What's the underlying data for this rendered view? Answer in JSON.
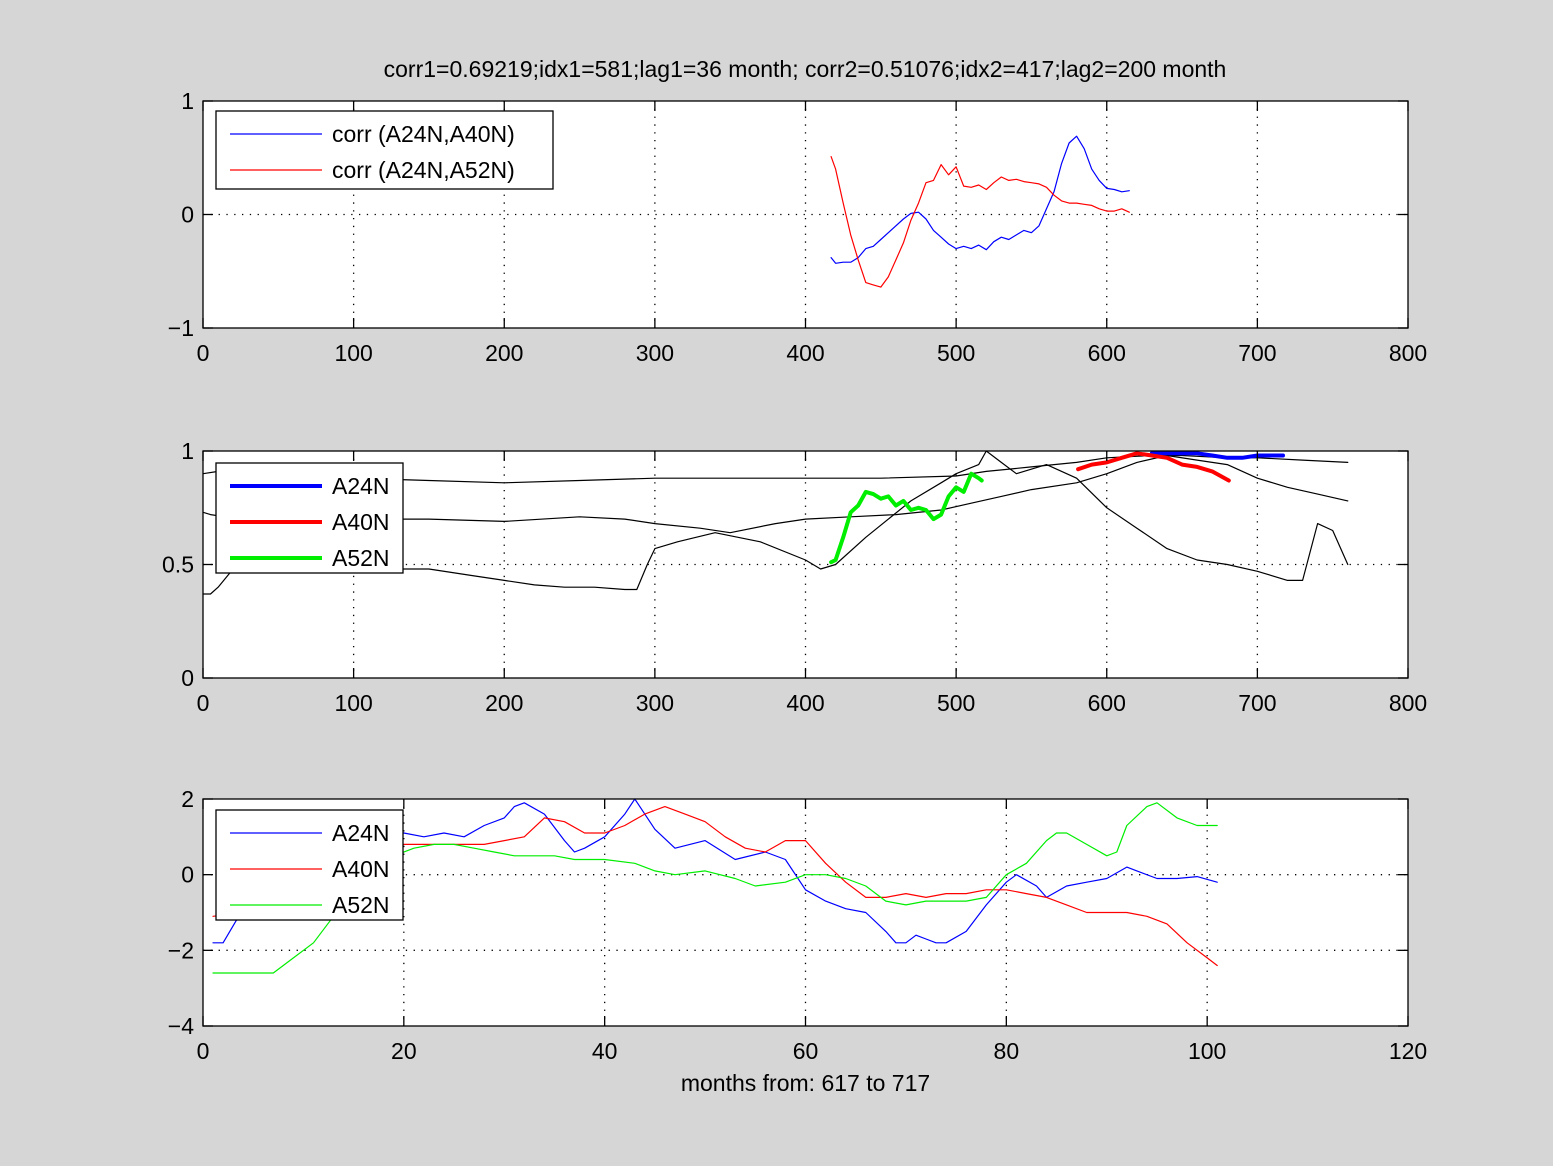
{
  "figure": {
    "title": "corr1=0.69219;idx1=581;lag1=36 month;   corr2=0.51076;idx2=417;lag2=200 month",
    "background": "#d6d6d6"
  },
  "chart_data": [
    {
      "type": "line",
      "title": "corr1=0.69219;idx1=581;lag1=36 month;   corr2=0.51076;idx2=417;lag2=200 month",
      "xlabel": "",
      "ylabel": "",
      "xlim": [
        0,
        800
      ],
      "ylim": [
        -1,
        1
      ],
      "xticks": [
        0,
        100,
        200,
        300,
        400,
        500,
        600,
        700,
        800
      ],
      "yticks": [
        -1,
        0,
        1
      ],
      "grid": true,
      "legend_position": "top-left",
      "series": [
        {
          "name": "corr (A24N,A40N)",
          "color": "#0000ff",
          "width": 1.2,
          "x": [
            417,
            420,
            425,
            430,
            435,
            440,
            445,
            450,
            455,
            460,
            465,
            470,
            475,
            480,
            485,
            490,
            495,
            500,
            505,
            510,
            515,
            520,
            525,
            530,
            535,
            540,
            545,
            550,
            555,
            560,
            565,
            570,
            575,
            580,
            585,
            590,
            595,
            600,
            605,
            610,
            615
          ],
          "y": [
            -0.38,
            -0.43,
            -0.42,
            -0.42,
            -0.38,
            -0.3,
            -0.28,
            -0.22,
            -0.16,
            -0.1,
            -0.04,
            0.01,
            0.02,
            -0.04,
            -0.14,
            -0.2,
            -0.26,
            -0.3,
            -0.28,
            -0.3,
            -0.27,
            -0.31,
            -0.24,
            -0.2,
            -0.22,
            -0.18,
            -0.14,
            -0.16,
            -0.1,
            0.05,
            0.2,
            0.45,
            0.63,
            0.69,
            0.58,
            0.4,
            0.3,
            0.23,
            0.22,
            0.2,
            0.21
          ]
        },
        {
          "name": "corr (A24N,A52N)",
          "color": "#ff0000",
          "width": 1.2,
          "x": [
            417,
            420,
            425,
            430,
            435,
            440,
            445,
            450,
            455,
            460,
            465,
            470,
            475,
            480,
            485,
            490,
            495,
            500,
            505,
            510,
            515,
            520,
            525,
            530,
            535,
            540,
            545,
            550,
            555,
            560,
            565,
            570,
            575,
            580,
            585,
            590,
            595,
            600,
            605,
            610,
            615
          ],
          "y": [
            0.51,
            0.4,
            0.1,
            -0.18,
            -0.4,
            -0.6,
            -0.62,
            -0.64,
            -0.55,
            -0.4,
            -0.25,
            -0.05,
            0.1,
            0.28,
            0.3,
            0.44,
            0.35,
            0.42,
            0.25,
            0.24,
            0.26,
            0.22,
            0.28,
            0.33,
            0.3,
            0.31,
            0.29,
            0.28,
            0.27,
            0.24,
            0.17,
            0.12,
            0.1,
            0.1,
            0.09,
            0.08,
            0.05,
            0.03,
            0.03,
            0.05,
            0.02
          ]
        }
      ]
    },
    {
      "type": "line",
      "xlabel": "",
      "ylabel": "",
      "xlim": [
        0,
        800
      ],
      "ylim": [
        0,
        1
      ],
      "xticks": [
        0,
        100,
        200,
        300,
        400,
        500,
        600,
        700,
        800
      ],
      "yticks": [
        0,
        0.5,
        1
      ],
      "grid": true,
      "legend_position": "top-left",
      "background_series": [
        {
          "color": "#000000",
          "width": 1.2,
          "x": [
            0,
            10,
            50,
            100,
            150,
            200,
            250,
            300,
            350,
            400,
            450,
            500,
            520,
            550,
            580,
            600,
            630,
            650,
            680,
            700,
            730,
            760
          ],
          "y": [
            0.9,
            0.91,
            0.89,
            0.88,
            0.87,
            0.86,
            0.87,
            0.88,
            0.88,
            0.88,
            0.88,
            0.89,
            0.91,
            0.93,
            0.95,
            0.97,
            0.98,
            0.98,
            0.97,
            0.97,
            0.96,
            0.95
          ]
        },
        {
          "color": "#000000",
          "width": 1.2,
          "x": [
            0,
            5,
            15,
            40,
            60,
            90,
            120,
            150,
            200,
            250,
            280,
            300,
            330,
            350,
            380,
            400,
            430,
            460,
            490,
            510,
            530,
            550,
            580,
            600,
            620,
            640,
            660,
            680,
            700,
            720,
            740,
            760
          ],
          "y": [
            0.73,
            0.72,
            0.71,
            0.71,
            0.71,
            0.7,
            0.7,
            0.7,
            0.69,
            0.71,
            0.7,
            0.68,
            0.66,
            0.64,
            0.68,
            0.7,
            0.71,
            0.72,
            0.74,
            0.77,
            0.8,
            0.83,
            0.86,
            0.9,
            0.95,
            0.98,
            0.96,
            0.94,
            0.88,
            0.84,
            0.81,
            0.78
          ]
        },
        {
          "color": "#000000",
          "width": 1.2,
          "x": [
            0,
            5,
            10,
            20,
            40,
            60,
            90,
            100,
            120,
            150,
            180,
            200,
            220,
            240,
            260,
            280,
            288,
            295,
            300,
            315,
            340,
            370,
            400,
            410,
            420,
            440,
            470,
            490,
            500,
            515,
            520,
            530,
            540,
            560,
            580,
            600,
            620,
            640,
            660,
            680,
            700,
            720,
            730,
            740,
            750,
            760
          ],
          "y": [
            0.37,
            0.37,
            0.4,
            0.48,
            0.5,
            0.51,
            0.5,
            0.49,
            0.48,
            0.48,
            0.45,
            0.43,
            0.41,
            0.4,
            0.4,
            0.39,
            0.39,
            0.5,
            0.57,
            0.6,
            0.64,
            0.6,
            0.52,
            0.48,
            0.5,
            0.62,
            0.78,
            0.86,
            0.9,
            0.94,
            1.0,
            0.95,
            0.9,
            0.94,
            0.88,
            0.75,
            0.66,
            0.57,
            0.52,
            0.5,
            0.47,
            0.43,
            0.43,
            0.68,
            0.65,
            0.5
          ]
        }
      ],
      "series": [
        {
          "name": "A24N",
          "color": "#0000ff",
          "width": 4,
          "x": [
            630,
            640,
            650,
            660,
            670,
            680,
            690,
            700,
            710,
            717
          ],
          "y": [
            0.99,
            0.99,
            0.99,
            0.99,
            0.98,
            0.97,
            0.97,
            0.98,
            0.98,
            0.98
          ]
        },
        {
          "name": "A40N",
          "color": "#ff0000",
          "width": 4,
          "x": [
            581,
            590,
            600,
            610,
            620,
            630,
            640,
            650,
            660,
            670,
            681
          ],
          "y": [
            0.92,
            0.94,
            0.95,
            0.97,
            0.99,
            0.98,
            0.97,
            0.94,
            0.93,
            0.91,
            0.87
          ]
        },
        {
          "name": "A52N",
          "color": "#00ee00",
          "width": 4,
          "x": [
            417,
            420,
            425,
            430,
            435,
            440,
            445,
            450,
            455,
            460,
            465,
            470,
            475,
            480,
            485,
            490,
            495,
            500,
            505,
            510,
            515,
            517
          ],
          "y": [
            0.51,
            0.52,
            0.62,
            0.73,
            0.76,
            0.82,
            0.81,
            0.79,
            0.8,
            0.76,
            0.78,
            0.74,
            0.75,
            0.74,
            0.7,
            0.72,
            0.8,
            0.84,
            0.82,
            0.9,
            0.88,
            0.87
          ]
        }
      ]
    },
    {
      "type": "line",
      "xlabel": "months from: 617 to 717",
      "ylabel": "",
      "xlim": [
        0,
        120
      ],
      "ylim": [
        -4,
        2
      ],
      "xticks": [
        0,
        20,
        40,
        60,
        80,
        100,
        120
      ],
      "yticks": [
        -4,
        -2,
        0,
        2
      ],
      "grid": true,
      "legend_position": "top-left",
      "series": [
        {
          "name": "A24N",
          "color": "#0000ff",
          "width": 1.2,
          "x": [
            1,
            2,
            4,
            6,
            8,
            10,
            12,
            14,
            16,
            18,
            20,
            22,
            24,
            26,
            28,
            30,
            31,
            32,
            34,
            36,
            37,
            38,
            40,
            42,
            43,
            45,
            47,
            50,
            53,
            56,
            58,
            60,
            62,
            64,
            66,
            68,
            69,
            70,
            71,
            72,
            73,
            74,
            76,
            78,
            80,
            81,
            83,
            84,
            86,
            88,
            90,
            92,
            93,
            95,
            97,
            99,
            101
          ],
          "y": [
            -1.8,
            -1.8,
            -0.9,
            -0.3,
            0.1,
            0.4,
            0.6,
            0.8,
            0.9,
            1.0,
            1.1,
            1.0,
            1.1,
            1.0,
            1.3,
            1.5,
            1.8,
            1.9,
            1.6,
            0.9,
            0.6,
            0.7,
            1.0,
            1.6,
            2.0,
            1.2,
            0.7,
            0.9,
            0.4,
            0.6,
            0.4,
            -0.4,
            -0.7,
            -0.9,
            -1.0,
            -1.5,
            -1.8,
            -1.8,
            -1.6,
            -1.7,
            -1.8,
            -1.8,
            -1.5,
            -0.8,
            -0.2,
            0.0,
            -0.3,
            -0.6,
            -0.3,
            -0.2,
            -0.1,
            0.2,
            0.1,
            -0.1,
            -0.1,
            -0.05,
            -0.2
          ]
        },
        {
          "name": "A40N",
          "color": "#ff0000",
          "width": 1.2,
          "x": [
            1,
            4,
            8,
            12,
            16,
            20,
            22,
            25,
            28,
            30,
            32,
            34,
            36,
            38,
            40,
            42,
            44,
            46,
            48,
            50,
            52,
            54,
            56,
            58,
            60,
            62,
            64,
            66,
            68,
            70,
            72,
            74,
            76,
            78,
            80,
            82,
            84,
            86,
            88,
            90,
            92,
            94,
            96,
            98,
            100,
            101
          ],
          "y": [
            -1.1,
            -1.0,
            -0.5,
            0.0,
            0.4,
            0.8,
            0.8,
            0.8,
            0.8,
            0.9,
            1.0,
            1.5,
            1.4,
            1.1,
            1.1,
            1.3,
            1.6,
            1.8,
            1.6,
            1.4,
            1.0,
            0.7,
            0.6,
            0.9,
            0.9,
            0.3,
            -0.2,
            -0.6,
            -0.6,
            -0.5,
            -0.6,
            -0.5,
            -0.5,
            -0.4,
            -0.4,
            -0.5,
            -0.6,
            -0.8,
            -1.0,
            -1.0,
            -1.0,
            -1.1,
            -1.3,
            -1.8,
            -2.2,
            -2.4
          ]
        },
        {
          "name": "A52N",
          "color": "#00ee00",
          "width": 1.2,
          "x": [
            1,
            3,
            5,
            7,
            9,
            11,
            13,
            15,
            17,
            19,
            21,
            23,
            25,
            27,
            29,
            31,
            33,
            35,
            37,
            40,
            43,
            45,
            47,
            50,
            53,
            55,
            58,
            60,
            62,
            64,
            66,
            68,
            70,
            72,
            74,
            76,
            78,
            80,
            82,
            84,
            85,
            86,
            88,
            90,
            91,
            92,
            94,
            95,
            97,
            99,
            101
          ],
          "y": [
            -2.6,
            -2.6,
            -2.6,
            -2.6,
            -2.2,
            -1.8,
            -1.1,
            -0.5,
            0.2,
            0.5,
            0.7,
            0.8,
            0.8,
            0.7,
            0.6,
            0.5,
            0.5,
            0.5,
            0.4,
            0.4,
            0.3,
            0.1,
            0.0,
            0.1,
            -0.1,
            -0.3,
            -0.2,
            0.0,
            0.0,
            -0.1,
            -0.3,
            -0.7,
            -0.8,
            -0.7,
            -0.7,
            -0.7,
            -0.6,
            0.0,
            0.3,
            0.9,
            1.1,
            1.1,
            0.8,
            0.5,
            0.6,
            1.3,
            1.8,
            1.9,
            1.5,
            1.3,
            1.3
          ]
        }
      ]
    }
  ]
}
